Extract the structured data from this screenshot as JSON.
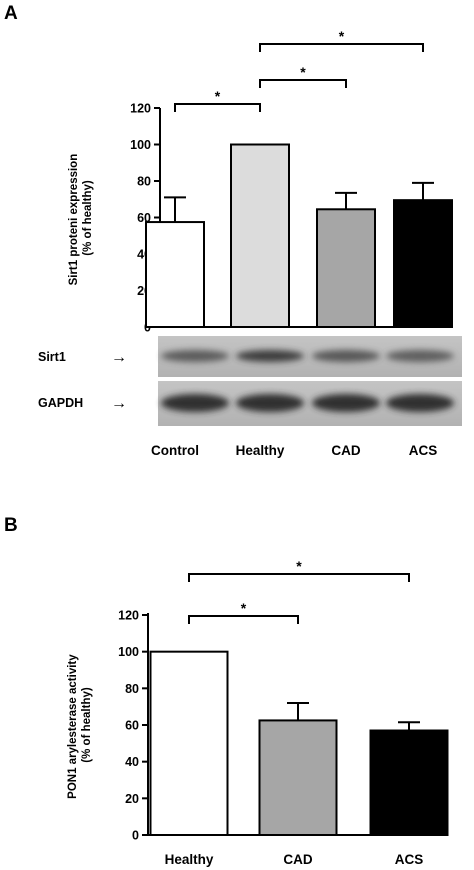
{
  "panels": {
    "a": {
      "letter": "A"
    },
    "b": {
      "letter": "B"
    }
  },
  "blot": {
    "rows": [
      {
        "label": "Sirt1",
        "arrow": "→",
        "bands": [
          0.62,
          0.85,
          0.66,
          0.6
        ]
      },
      {
        "label": "GAPDH",
        "arrow": "→",
        "bands": [
          0.95,
          0.95,
          0.95,
          0.95
        ]
      }
    ]
  },
  "significance_marker": "*",
  "chart_data": [
    {
      "id": "A",
      "type": "bar",
      "ylabel": "Sirt1 proteni expression\n(% of healthy)",
      "xlabel": "",
      "ylim": [
        0,
        120
      ],
      "yticks": [
        "0",
        "20",
        "40",
        "60",
        "80",
        "100",
        "120"
      ],
      "categories": [
        "Control",
        "Healthy",
        "CAD",
        "ACS"
      ],
      "values": [
        57.5,
        100,
        64.5,
        69.5
      ],
      "errors": [
        13.5,
        0,
        9,
        9.5
      ],
      "colors": [
        "#ffffff",
        "#dcdcdc",
        "#a6a6a6",
        "#000000"
      ],
      "significance": [
        {
          "from": "Control",
          "to": "Healthy",
          "label": "*"
        },
        {
          "from": "Healthy",
          "to": "CAD",
          "label": "*"
        },
        {
          "from": "Healthy",
          "to": "ACS",
          "label": "*"
        }
      ]
    },
    {
      "id": "B",
      "type": "bar",
      "ylabel": "PON1 arylesterase activity\n(% of healthy)",
      "xlabel": "",
      "ylim": [
        0,
        120
      ],
      "yticks": [
        "0",
        "20",
        "40",
        "60",
        "80",
        "100",
        "120"
      ],
      "categories": [
        "Healthy",
        "CAD",
        "ACS"
      ],
      "values": [
        100,
        62.5,
        57
      ],
      "errors": [
        0,
        9.5,
        4.5
      ],
      "colors": [
        "#ffffff",
        "#a6a6a6",
        "#000000"
      ],
      "significance": [
        {
          "from": "Healthy",
          "to": "CAD",
          "label": "*"
        },
        {
          "from": "Healthy",
          "to": "ACS",
          "label": "*"
        }
      ]
    }
  ]
}
